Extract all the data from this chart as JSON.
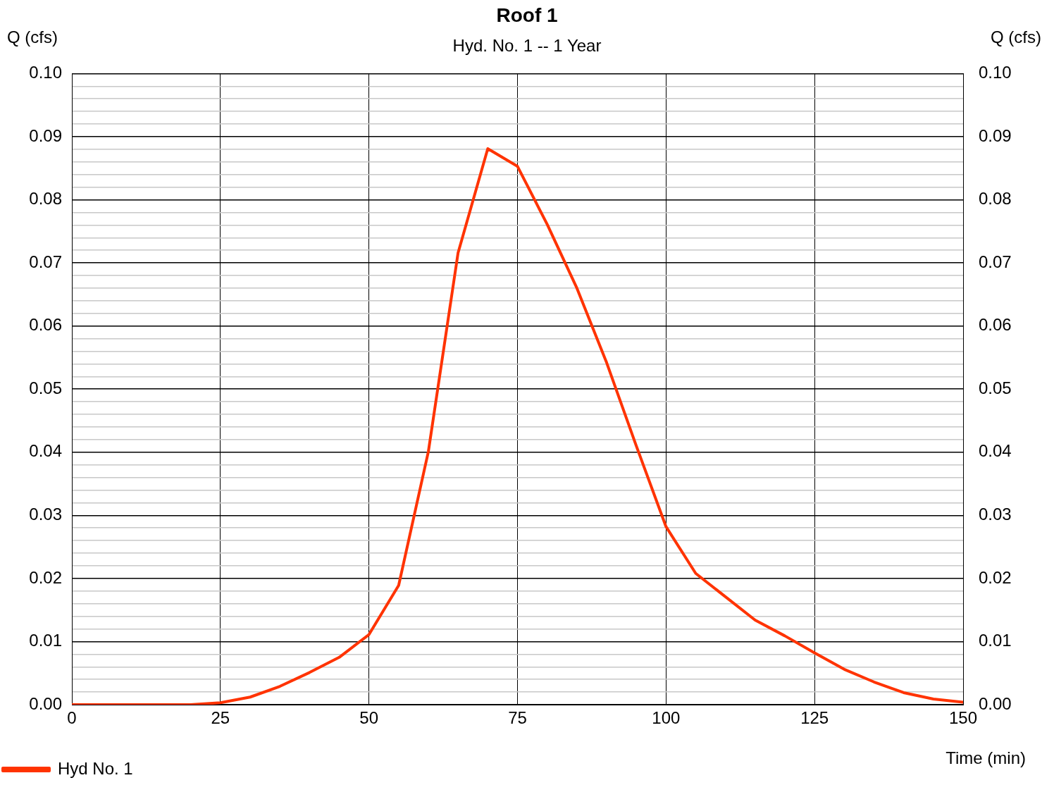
{
  "chart_data": {
    "type": "line",
    "title": "Roof 1",
    "subtitle": "Hyd. No. 1 -- 1 Year",
    "xlabel": "Time (min)",
    "ylabel": "Q (cfs)",
    "y2label": "Q (cfs)",
    "x": [
      0,
      5,
      10,
      15,
      20,
      25,
      30,
      35,
      40,
      45,
      50,
      55,
      60,
      65,
      70,
      75,
      80,
      85,
      90,
      95,
      100,
      105,
      110,
      115,
      120,
      125,
      130,
      135,
      140,
      145,
      150
    ],
    "series": [
      {
        "name": "Hyd No. 1",
        "color": "#ff3300",
        "values": [
          0,
          0,
          0,
          0,
          0,
          0.0003,
          0.0012,
          0.0029,
          0.0051,
          0.0075,
          0.0111,
          0.0189,
          0.0401,
          0.0716,
          0.0881,
          0.0853,
          0.0761,
          0.066,
          0.0542,
          0.041,
          0.0282,
          0.0208,
          0.0171,
          0.0134,
          0.0109,
          0.0082,
          0.0056,
          0.0036,
          0.0019,
          0.0009,
          0.0004
        ]
      }
    ],
    "xlim": [
      0,
      150
    ],
    "xticks": [
      0,
      25,
      50,
      75,
      100,
      125,
      150
    ],
    "ylim": [
      0,
      0.1
    ],
    "yticks": [
      {
        "value": 0,
        "label": "0.00"
      },
      {
        "value": 0.002,
        "label": null
      },
      {
        "value": 0.004,
        "label": null
      },
      {
        "value": 0.006,
        "label": null
      },
      {
        "value": 0.008,
        "label": null
      },
      {
        "value": 0.01,
        "label": "0.01"
      },
      {
        "value": 0.012,
        "label": null
      },
      {
        "value": 0.014,
        "label": null
      },
      {
        "value": 0.016,
        "label": null
      },
      {
        "value": 0.018,
        "label": null
      },
      {
        "value": 0.02,
        "label": "0.02"
      },
      {
        "value": 0.022,
        "label": null
      },
      {
        "value": 0.024,
        "label": null
      },
      {
        "value": 0.026,
        "label": null
      },
      {
        "value": 0.028,
        "label": null
      },
      {
        "value": 0.03,
        "label": "0.03"
      },
      {
        "value": 0.032,
        "label": null
      },
      {
        "value": 0.034,
        "label": null
      },
      {
        "value": 0.036,
        "label": null
      },
      {
        "value": 0.038,
        "label": null
      },
      {
        "value": 0.04,
        "label": "0.04"
      },
      {
        "value": 0.042,
        "label": null
      },
      {
        "value": 0.044,
        "label": null
      },
      {
        "value": 0.046,
        "label": null
      },
      {
        "value": 0.048,
        "label": null
      },
      {
        "value": 0.05,
        "label": "0.05"
      },
      {
        "value": 0.052,
        "label": null
      },
      {
        "value": 0.054,
        "label": null
      },
      {
        "value": 0.056,
        "label": null
      },
      {
        "value": 0.058,
        "label": null
      },
      {
        "value": 0.06,
        "label": "0.06"
      },
      {
        "value": 0.062,
        "label": null
      },
      {
        "value": 0.064,
        "label": null
      },
      {
        "value": 0.066,
        "label": null
      },
      {
        "value": 0.068,
        "label": null
      },
      {
        "value": 0.07,
        "label": "0.07"
      },
      {
        "value": 0.072,
        "label": null
      },
      {
        "value": 0.074,
        "label": null
      },
      {
        "value": 0.076,
        "label": null
      },
      {
        "value": 0.078,
        "label": null
      },
      {
        "value": 0.08,
        "label": "0.08"
      },
      {
        "value": 0.082,
        "label": null
      },
      {
        "value": 0.084,
        "label": null
      },
      {
        "value": 0.086,
        "label": null
      },
      {
        "value": 0.088,
        "label": null
      },
      {
        "value": 0.09,
        "label": "0.09"
      },
      {
        "value": 0.092,
        "label": null
      },
      {
        "value": 0.094,
        "label": null
      },
      {
        "value": 0.096,
        "label": null
      },
      {
        "value": 0.098,
        "label": null
      },
      {
        "value": 0.1,
        "label": "0.10"
      }
    ],
    "y2lim": [
      0,
      0.1
    ],
    "y2ticks": [
      {
        "value": 0,
        "label": "0.00"
      },
      {
        "value": 0.01,
        "label": "0.01"
      },
      {
        "value": 0.02,
        "label": "0.02"
      },
      {
        "value": 0.03,
        "label": "0.03"
      },
      {
        "value": 0.04,
        "label": "0.04"
      },
      {
        "value": 0.05,
        "label": "0.05"
      },
      {
        "value": 0.06,
        "label": "0.06"
      },
      {
        "value": 0.07,
        "label": "0.07"
      },
      {
        "value": 0.08,
        "label": "0.08"
      },
      {
        "value": 0.09,
        "label": "0.09"
      },
      {
        "value": 0.1,
        "label": "0.10"
      }
    ],
    "grid": true,
    "legend": "bottom left",
    "marker": "none",
    "line_style": "solid"
  }
}
